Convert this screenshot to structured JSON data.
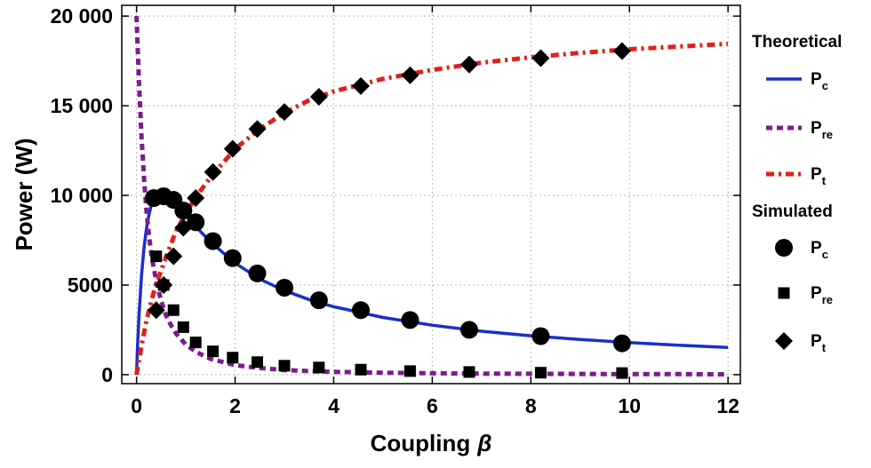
{
  "chart_data": {
    "type": "line",
    "title": "",
    "xlabel": "Coupling",
    "xlabel_symbol": "β",
    "ylabel": "Power (W)",
    "xlim": [
      -0.3,
      12.25
    ],
    "ylim": [
      -500,
      20600
    ],
    "grid": true,
    "grid_style": "dotted",
    "xticks": [
      0,
      2,
      4,
      6,
      8,
      10,
      12
    ],
    "xtick_labels": [
      "0",
      "2",
      "4",
      "6",
      "8",
      "10",
      "12"
    ],
    "yticks": [
      0,
      5000,
      10000,
      15000,
      20000
    ],
    "ytick_labels": [
      "0",
      "5000",
      "10 000",
      "15 000",
      "20 000"
    ],
    "legend_position": "right",
    "legend_groups": [
      {
        "title": "Theoretical",
        "entries": [
          {
            "key": "theo_pc",
            "base": "P",
            "sub": "c"
          },
          {
            "key": "theo_pre",
            "base": "P",
            "sub": "re"
          },
          {
            "key": "theo_pt",
            "base": "P",
            "sub": "t"
          }
        ]
      },
      {
        "title": "Simulated",
        "entries": [
          {
            "key": "sim_pc",
            "base": "P",
            "sub": "c"
          },
          {
            "key": "sim_pre",
            "base": "P",
            "sub": "re"
          },
          {
            "key": "sim_pt",
            "base": "P",
            "sub": "t"
          }
        ]
      }
    ],
    "series": [
      {
        "key": "theo_pc",
        "kind": "line",
        "style": "solid",
        "color": "#1a2ecc",
        "x": [
          0,
          0.02,
          0.05,
          0.1,
          0.15,
          0.2,
          0.25,
          0.3,
          0.4,
          0.5,
          0.6,
          0.7,
          0.8,
          1.0,
          1.2,
          1.5,
          2.0,
          2.5,
          3.0,
          3.5,
          4.0,
          5.0,
          6.0,
          7.0,
          8.0,
          9.0,
          10.0,
          11.0,
          12.0
        ],
        "y": [
          0,
          1540,
          3310,
          5510,
          7060,
          8120,
          8900,
          9470,
          9920,
          10000,
          9910,
          9690,
          9480,
          8890,
          8260,
          7410,
          6220,
          5330,
          4690,
          4190,
          3790,
          3190,
          2760,
          2420,
          2170,
          1960,
          1790,
          1640,
          1520
        ]
      },
      {
        "key": "theo_pre",
        "kind": "line",
        "style": "dashed",
        "color": "#7b1c8c",
        "x": [
          0,
          0.02,
          0.05,
          0.1,
          0.15,
          0.2,
          0.25,
          0.3,
          0.4,
          0.5,
          0.6,
          0.7,
          0.8,
          1.0,
          1.2,
          1.5,
          2.0,
          2.5,
          3.0,
          3.5,
          4.0,
          5.0,
          6.0,
          7.0,
          8.0,
          9.0,
          10.0,
          11.0,
          12.0
        ],
        "y": [
          20000,
          18500,
          16300,
          13300,
          11000,
          9200,
          7800,
          6700,
          5200,
          4100,
          3300,
          2750,
          2300,
          1680,
          1280,
          880,
          530,
          370,
          260,
          200,
          160,
          110,
          80,
          60,
          50,
          40,
          30,
          30,
          20
        ]
      },
      {
        "key": "theo_pt",
        "kind": "line",
        "style": "dashdot",
        "color": "#e0201c",
        "x": [
          0,
          0.05,
          0.1,
          0.2,
          0.3,
          0.4,
          0.5,
          0.6,
          0.8,
          1.0,
          1.2,
          1.5,
          2.0,
          2.5,
          3.0,
          3.5,
          4.0,
          5.0,
          6.0,
          7.0,
          8.0,
          9.0,
          10.0,
          11.0,
          12.0
        ],
        "y": [
          0,
          800,
          1600,
          3000,
          4100,
          5100,
          5800,
          6600,
          8000,
          9000,
          9900,
          11000,
          12600,
          13700,
          14600,
          15300,
          15800,
          16500,
          17000,
          17400,
          17700,
          17950,
          18150,
          18300,
          18450
        ]
      },
      {
        "key": "sim_pc",
        "kind": "scatter",
        "marker": "circle",
        "color": "#000000",
        "x": [
          0.35,
          0.55,
          0.75,
          0.95,
          1.2,
          1.55,
          1.95,
          2.45,
          3.0,
          3.7,
          4.55,
          5.55,
          6.75,
          8.2,
          9.85
        ],
        "y": [
          9850,
          9950,
          9750,
          9150,
          8500,
          7450,
          6500,
          5650,
          4850,
          4150,
          3600,
          3050,
          2500,
          2150,
          1750
        ]
      },
      {
        "key": "sim_pre",
        "kind": "scatter",
        "marker": "square",
        "color": "#000000",
        "x": [
          0.4,
          0.55,
          0.75,
          0.95,
          1.2,
          1.55,
          1.95,
          2.45,
          3.0,
          3.7,
          4.55,
          5.55,
          6.75,
          8.2,
          9.85
        ],
        "y": [
          6600,
          5000,
          3600,
          2650,
          1800,
          1300,
          950,
          700,
          500,
          400,
          280,
          200,
          150,
          110,
          90
        ]
      },
      {
        "key": "sim_pt",
        "kind": "scatter",
        "marker": "diamond",
        "color": "#000000",
        "x": [
          0.4,
          0.55,
          0.75,
          0.95,
          1.2,
          1.55,
          1.95,
          2.45,
          3.0,
          3.7,
          4.55,
          5.55,
          6.75,
          8.2,
          9.85
        ],
        "y": [
          3600,
          5000,
          6600,
          8200,
          9850,
          11300,
          12600,
          13700,
          14650,
          15500,
          16100,
          16700,
          17300,
          17650,
          18050
        ]
      }
    ]
  }
}
